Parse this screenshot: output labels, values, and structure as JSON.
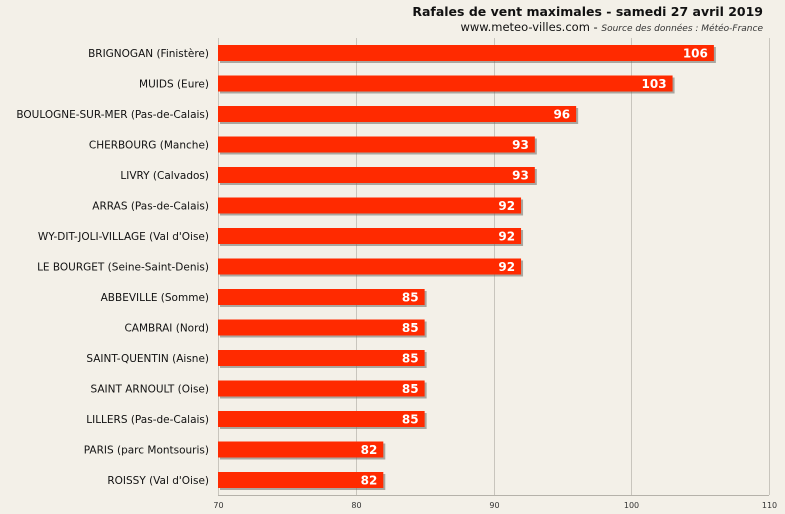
{
  "header": {
    "title": "Rafales de vent maximales - samedi 27 avril 2019",
    "site": "www.meteo-villes.com",
    "separator": " - ",
    "source": "Source des données : Météo-France"
  },
  "chart_data": {
    "type": "bar",
    "orientation": "horizontal",
    "title": "Rafales de vent maximales - samedi 27 avril 2019",
    "xlabel": "",
    "ylabel": "",
    "xlim": [
      70,
      110
    ],
    "ticks": [
      70,
      80,
      90,
      100,
      110
    ],
    "grid": true,
    "bar_color": "#ff2a00",
    "categories": [
      "BRIGNOGAN (Finistère)",
      "MUIDS (Eure)",
      "BOULOGNE-SUR-MER (Pas-de-Calais)",
      "CHERBOURG (Manche)",
      "LIVRY (Calvados)",
      "ARRAS (Pas-de-Calais)",
      "WY-DIT-JOLI-VILLAGE (Val d'Oise)",
      "LE BOURGET (Seine-Saint-Denis)",
      "ABBEVILLE (Somme)",
      "CAMBRAI (Nord)",
      "SAINT-QUENTIN (Aisne)",
      "SAINT ARNOULT (Oise)",
      "LILLERS (Pas-de-Calais)",
      "PARIS (parc Montsouris)",
      "ROISSY (Val d'Oise)"
    ],
    "values": [
      106,
      103,
      96,
      93,
      93,
      92,
      92,
      92,
      85,
      85,
      85,
      85,
      85,
      82,
      82
    ]
  }
}
